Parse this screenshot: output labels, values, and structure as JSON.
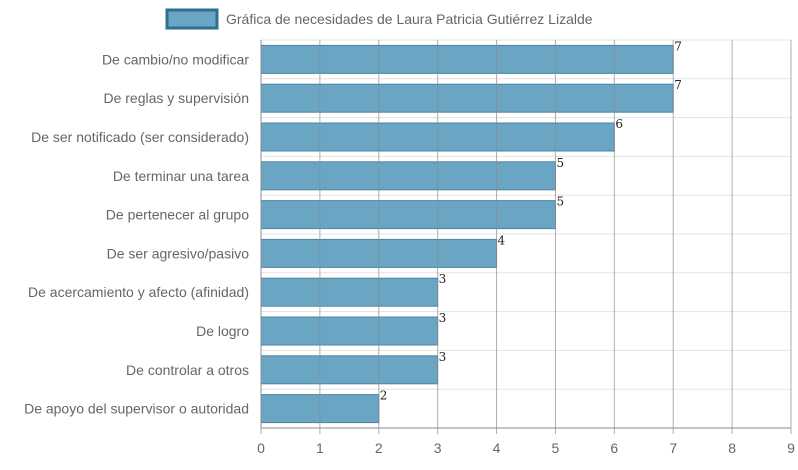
{
  "chart_data": {
    "type": "bar",
    "orientation": "horizontal",
    "categories": [
      "De cambio/no modificar",
      "De reglas y supervisión",
      "De ser notificado (ser considerado)",
      "De terminar una tarea",
      "De pertenecer al grupo",
      "De ser agresivo/pasivo",
      "De acercamiento y afecto (afinidad)",
      "De logro",
      "De controlar a otros",
      "De apoyo del supervisor o autoridad"
    ],
    "series": [
      {
        "name": "Gráfica de necesidades de Laura Patricia Gutiérrez Lizalde",
        "values": [
          7,
          7,
          6,
          5,
          5,
          4,
          3,
          3,
          3,
          2
        ],
        "color": "#6aa5c3",
        "border_color": "#4e86a6"
      }
    ],
    "x_ticks": [
      "0",
      "1",
      "2",
      "3",
      "4",
      "5",
      "6",
      "7",
      "8",
      "9"
    ],
    "xlim": [
      0,
      9
    ],
    "legend_position": "top",
    "grid": true,
    "data_labels": true
  }
}
